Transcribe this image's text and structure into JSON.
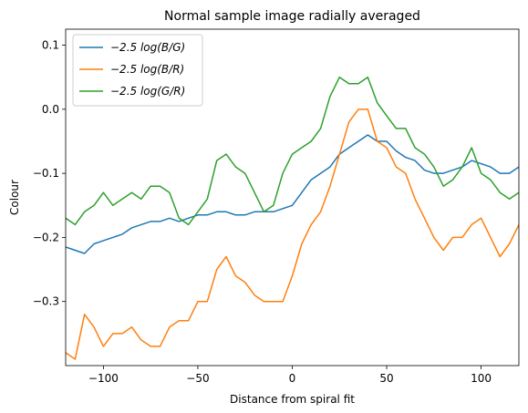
{
  "chart_data": {
    "type": "line",
    "title": "Normal sample image radially averaged",
    "xlabel": "Distance from spiral fit",
    "ylabel": "Colour",
    "xlim": [
      -120,
      120
    ],
    "ylim": [
      -0.4,
      0.125
    ],
    "xticks": [
      -100,
      -50,
      0,
      50,
      100
    ],
    "xtick_labels": [
      "−100",
      "−50",
      "0",
      "50",
      "100"
    ],
    "yticks": [
      -0.3,
      -0.2,
      -0.1,
      0.0,
      0.1
    ],
    "ytick_labels": [
      "−0.3",
      "−0.2",
      "−0.1",
      "0.0",
      "0.1"
    ],
    "grid": false,
    "legend_position": "top-left",
    "x": [
      -120,
      -115,
      -110,
      -105,
      -100,
      -95,
      -90,
      -85,
      -80,
      -75,
      -70,
      -65,
      -60,
      -55,
      -50,
      -45,
      -40,
      -35,
      -30,
      -25,
      -20,
      -15,
      -10,
      -5,
      0,
      5,
      10,
      15,
      20,
      25,
      30,
      35,
      40,
      45,
      50,
      55,
      60,
      65,
      70,
      75,
      80,
      85,
      90,
      95,
      100,
      105,
      110,
      115,
      120
    ],
    "series": [
      {
        "name": "−2.5 log(B/G)",
        "color": "#1f77b4",
        "values": [
          -0.215,
          -0.22,
          -0.225,
          -0.21,
          -0.205,
          -0.2,
          -0.195,
          -0.185,
          -0.18,
          -0.175,
          -0.175,
          -0.17,
          -0.175,
          -0.17,
          -0.165,
          -0.165,
          -0.16,
          -0.16,
          -0.165,
          -0.165,
          -0.16,
          -0.16,
          -0.16,
          -0.155,
          -0.15,
          -0.13,
          -0.11,
          -0.1,
          -0.09,
          -0.07,
          -0.06,
          -0.05,
          -0.04,
          -0.05,
          -0.05,
          -0.065,
          -0.075,
          -0.08,
          -0.095,
          -0.1,
          -0.1,
          -0.095,
          -0.09,
          -0.08,
          -0.085,
          -0.09,
          -0.1,
          -0.1,
          -0.09
        ]
      },
      {
        "name": "−2.5 log(B/R)",
        "color": "#ff7f0e",
        "values": [
          -0.38,
          -0.39,
          -0.32,
          -0.34,
          -0.37,
          -0.35,
          -0.35,
          -0.34,
          -0.36,
          -0.37,
          -0.37,
          -0.34,
          -0.33,
          -0.33,
          -0.3,
          -0.3,
          -0.25,
          -0.23,
          -0.26,
          -0.27,
          -0.29,
          -0.3,
          -0.3,
          -0.3,
          -0.26,
          -0.21,
          -0.18,
          -0.16,
          -0.12,
          -0.07,
          -0.02,
          0.0,
          0.0,
          -0.05,
          -0.06,
          -0.09,
          -0.1,
          -0.14,
          -0.17,
          -0.2,
          -0.22,
          -0.2,
          -0.2,
          -0.18,
          -0.17,
          -0.2,
          -0.23,
          -0.21,
          -0.18
        ]
      },
      {
        "name": "−2.5 log(G/R)",
        "color": "#2ca02c",
        "values": [
          -0.17,
          -0.18,
          -0.16,
          -0.15,
          -0.13,
          -0.15,
          -0.14,
          -0.13,
          -0.14,
          -0.12,
          -0.12,
          -0.13,
          -0.17,
          -0.18,
          -0.16,
          -0.14,
          -0.08,
          -0.07,
          -0.09,
          -0.1,
          -0.13,
          -0.16,
          -0.15,
          -0.1,
          -0.07,
          -0.06,
          -0.05,
          -0.03,
          0.02,
          0.05,
          0.04,
          0.04,
          0.05,
          0.01,
          -0.01,
          -0.03,
          -0.03,
          -0.06,
          -0.07,
          -0.09,
          -0.12,
          -0.11,
          -0.09,
          -0.06,
          -0.1,
          -0.11,
          -0.13,
          -0.14,
          -0.13
        ]
      }
    ]
  }
}
